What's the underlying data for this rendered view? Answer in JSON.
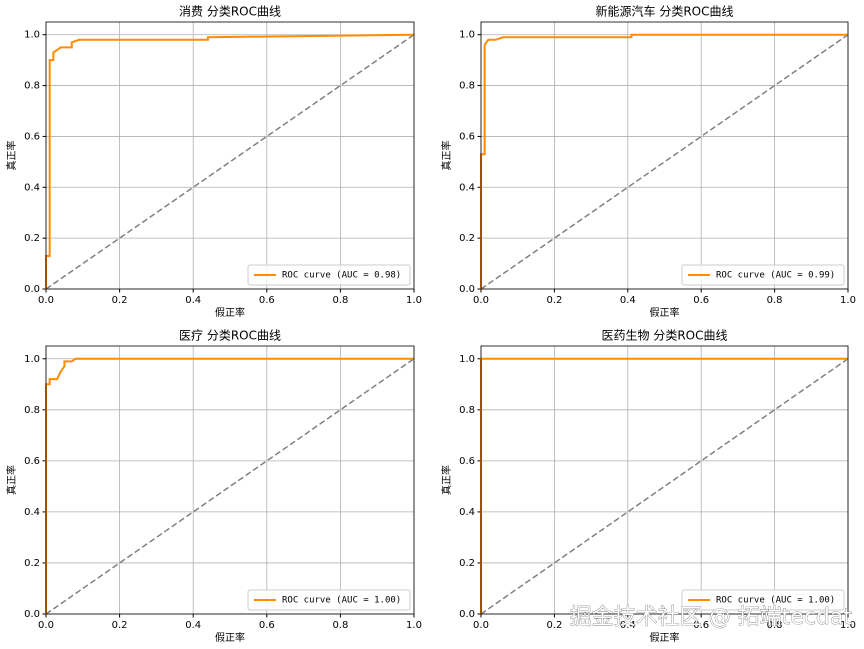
{
  "chart_data": [
    {
      "type": "line",
      "title": "消费 分类ROC曲线",
      "xlabel": "假正率",
      "ylabel": "真正率",
      "x": [
        0,
        0,
        0.01,
        0.01,
        0.02,
        0.02,
        0.03,
        0.04,
        0.07,
        0.07,
        0.09,
        0.44,
        0.44,
        1
      ],
      "series": [
        {
          "name": "ROC curve (AUC = 0.98)",
          "color": "#ff8c00",
          "values": [
            0,
            0.13,
            0.13,
            0.9,
            0.9,
            0.93,
            0.94,
            0.95,
            0.95,
            0.97,
            0.98,
            0.98,
            0.99,
            1
          ]
        }
      ],
      "reference_line": {
        "x": [
          0,
          1
        ],
        "y": [
          0,
          1
        ],
        "color": "#808080"
      },
      "xlim": [
        0,
        1
      ],
      "ylim": [
        0,
        1.05
      ],
      "xticks": [
        {
          "value": 0,
          "label": "0.0"
        },
        0.2,
        0.4,
        0.6,
        0.8,
        {
          "value": 1,
          "label": "1.0"
        }
      ],
      "yticks": [
        {
          "value": 0,
          "label": "0.0"
        },
        0.2,
        0.4,
        0.6,
        0.8,
        {
          "value": 1,
          "label": "1.0"
        }
      ],
      "grid": true,
      "legend": "lower right"
    },
    {
      "type": "line",
      "title": "新能源汽车 分类ROC曲线",
      "xlabel": "假正率",
      "ylabel": "真正率",
      "x": [
        0,
        0,
        0.01,
        0.01,
        0.02,
        0.04,
        0.06,
        0.41,
        0.41,
        1
      ],
      "series": [
        {
          "name": "ROC curve (AUC = 0.99)",
          "color": "#ff8c00",
          "values": [
            0,
            0.53,
            0.53,
            0.96,
            0.98,
            0.98,
            0.99,
            0.99,
            1,
            1
          ]
        }
      ],
      "reference_line": {
        "x": [
          0,
          1
        ],
        "y": [
          0,
          1
        ],
        "color": "#808080"
      },
      "xlim": [
        0,
        1
      ],
      "ylim": [
        0,
        1.05
      ],
      "xticks": [
        {
          "value": 0,
          "label": "0.0"
        },
        0.2,
        0.4,
        0.6,
        0.8,
        {
          "value": 1,
          "label": "1.0"
        }
      ],
      "yticks": [
        {
          "value": 0,
          "label": "0.0"
        },
        0.2,
        0.4,
        0.6,
        0.8,
        {
          "value": 1,
          "label": "1.0"
        }
      ],
      "grid": true,
      "legend": "lower right"
    },
    {
      "type": "line",
      "title": "医疗 分类ROC曲线",
      "xlabel": "假正率",
      "ylabel": "真正率",
      "x": [
        0,
        0,
        0.01,
        0.01,
        0.03,
        0.04,
        0.05,
        0.05,
        0.07,
        0.08,
        1
      ],
      "series": [
        {
          "name": "ROC curve (AUC = 1.00)",
          "color": "#ff8c00",
          "values": [
            0,
            0.9,
            0.9,
            0.92,
            0.92,
            0.95,
            0.97,
            0.99,
            0.99,
            1,
            1
          ]
        }
      ],
      "reference_line": {
        "x": [
          0,
          1
        ],
        "y": [
          0,
          1
        ],
        "color": "#808080"
      },
      "xlim": [
        0,
        1
      ],
      "ylim": [
        0,
        1.05
      ],
      "xticks": [
        {
          "value": 0,
          "label": "0.0"
        },
        0.2,
        0.4,
        0.6,
        0.8,
        {
          "value": 1,
          "label": "1.0"
        }
      ],
      "yticks": [
        {
          "value": 0,
          "label": "0.0"
        },
        0.2,
        0.4,
        0.6,
        0.8,
        {
          "value": 1,
          "label": "1.0"
        }
      ],
      "grid": true,
      "legend": "lower right"
    },
    {
      "type": "line",
      "title": "医药生物 分类ROC曲线",
      "xlabel": "假正率",
      "ylabel": "真正率",
      "x": [
        0,
        0,
        1
      ],
      "series": [
        {
          "name": "ROC curve (AUC = 1.00)",
          "color": "#ff8c00",
          "values": [
            0,
            1,
            1
          ]
        }
      ],
      "reference_line": {
        "x": [
          0,
          1
        ],
        "y": [
          0,
          1
        ],
        "color": "#808080"
      },
      "xlim": [
        0,
        1
      ],
      "ylim": [
        0,
        1.05
      ],
      "xticks": [
        {
          "value": 0,
          "label": "0.0"
        },
        0.2,
        0.4,
        0.6,
        0.8,
        {
          "value": 1,
          "label": "1.0"
        }
      ],
      "yticks": [
        {
          "value": 0,
          "label": "0.0"
        },
        0.2,
        0.4,
        0.6,
        0.8,
        {
          "value": 1,
          "label": "1.0"
        }
      ],
      "grid": true,
      "legend": "lower right"
    }
  ],
  "watermark": "掘金技术社区 @ 拓端tecdat"
}
